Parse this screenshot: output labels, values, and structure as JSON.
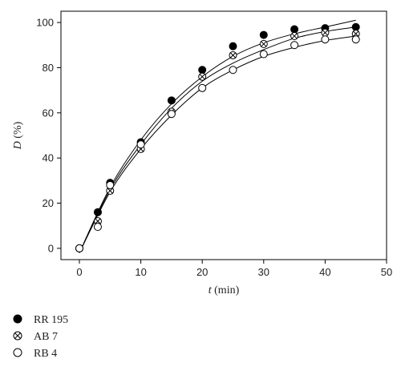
{
  "chart_data": {
    "type": "scatter",
    "xlabel_var": "t",
    "xlabel_unit": " (min)",
    "ylabel_var": "D",
    "ylabel_unit": " (%)",
    "xlim": [
      -3,
      50
    ],
    "ylim": [
      -5,
      105
    ],
    "xticks": [
      "0",
      "10",
      "20",
      "30",
      "40",
      "50"
    ],
    "yticks": [
      "0",
      "20",
      "40",
      "60",
      "80",
      "100"
    ],
    "grid": false,
    "legend_placement": "bottom-left, below plot",
    "series": [
      {
        "name": "RR 195",
        "marker": "filled-circle",
        "x": [
          0,
          3,
          5,
          10,
          15,
          20,
          25,
          30,
          35,
          40,
          45
        ],
        "y": [
          0,
          16,
          29,
          47,
          65.5,
          79,
          89.5,
          94.5,
          97,
          97.5,
          98
        ]
      },
      {
        "name": "AB 7",
        "marker": "crossed-circle",
        "x": [
          0,
          3,
          5,
          10,
          15,
          20,
          25,
          30,
          35,
          40,
          45
        ],
        "y": [
          0,
          12,
          25.5,
          44,
          60.5,
          76,
          85.5,
          90.5,
          94,
          95.5,
          95
        ]
      },
      {
        "name": "RB 4",
        "marker": "open-circle",
        "x": [
          0,
          3,
          5,
          10,
          15,
          20,
          25,
          30,
          35,
          40,
          45
        ],
        "y": [
          0,
          9.5,
          28,
          46,
          59.5,
          71,
          79,
          86,
          90,
          92.5,
          92.5
        ]
      }
    ],
    "fit_curves": [
      {
        "series": "RR 195",
        "x": [
          0,
          5,
          10,
          15,
          20,
          25,
          30,
          35,
          40,
          45
        ],
        "y": [
          -2,
          27,
          48,
          64,
          76,
          85,
          91,
          95,
          98,
          101
        ]
      },
      {
        "series": "AB 7",
        "x": [
          0,
          5,
          10,
          15,
          20,
          25,
          30,
          35,
          40,
          45
        ],
        "y": [
          -2,
          26,
          46,
          62,
          74,
          82,
          88,
          93,
          96,
          98
        ]
      },
      {
        "series": "RB 4",
        "x": [
          0,
          5,
          10,
          15,
          20,
          25,
          30,
          35,
          40,
          45
        ],
        "y": [
          -2,
          25,
          44,
          59,
          71,
          79,
          85,
          89,
          92,
          94
        ]
      }
    ]
  }
}
